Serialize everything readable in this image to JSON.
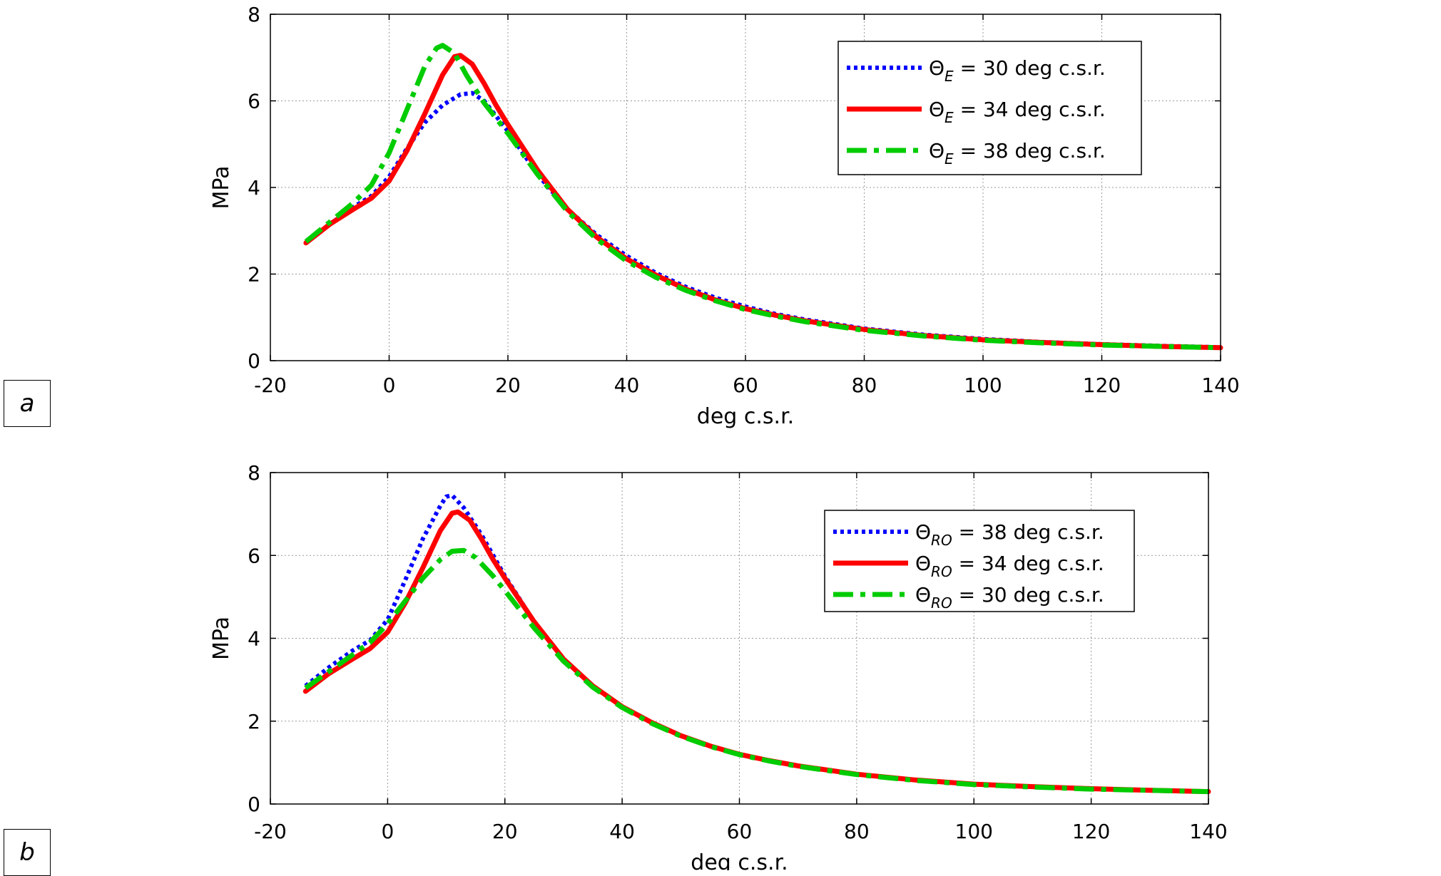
{
  "chart_data": [
    {
      "panel": "a",
      "type": "line",
      "xlabel": "deg c.s.r.",
      "ylabel": "MPa",
      "xlim": [
        -20,
        140
      ],
      "ylim": [
        0,
        8
      ],
      "xticks": [
        -20,
        0,
        20,
        40,
        60,
        80,
        100,
        120,
        140
      ],
      "yticks": [
        0,
        2,
        4,
        6,
        8
      ],
      "grid": true,
      "legend_position": "top-right",
      "series": [
        {
          "name": "Θ_E = 30 deg c.s.r.",
          "symbol": "Θ",
          "subscript": "E",
          "suffix": " = 30 deg c.s.r.",
          "color": "#0000ff",
          "style": "dotted",
          "points": [
            [
              -14,
              2.72
            ],
            [
              -10,
              3.15
            ],
            [
              -6,
              3.55
            ],
            [
              -3,
              3.8
            ],
            [
              0,
              4.25
            ],
            [
              3,
              4.9
            ],
            [
              6,
              5.5
            ],
            [
              9,
              5.9
            ],
            [
              12,
              6.15
            ],
            [
              14,
              6.18
            ],
            [
              16,
              6.0
            ],
            [
              18,
              5.65
            ],
            [
              20,
              5.3
            ],
            [
              25,
              4.3
            ],
            [
              30,
              3.5
            ],
            [
              35,
              2.9
            ],
            [
              40,
              2.42
            ],
            [
              45,
              2.02
            ],
            [
              50,
              1.7
            ],
            [
              55,
              1.45
            ],
            [
              60,
              1.25
            ],
            [
              65,
              1.08
            ],
            [
              70,
              0.95
            ],
            [
              80,
              0.74
            ],
            [
              90,
              0.6
            ],
            [
              100,
              0.5
            ],
            [
              110,
              0.43
            ],
            [
              120,
              0.38
            ],
            [
              130,
              0.34
            ],
            [
              140,
              0.31
            ]
          ]
        },
        {
          "name": "Θ_E = 34 deg c.s.r.",
          "symbol": "Θ",
          "subscript": "E",
          "suffix": " = 34 deg c.s.r.",
          "color": "#ff0000",
          "style": "solid",
          "points": [
            [
              -14,
              2.72
            ],
            [
              -10,
              3.15
            ],
            [
              -6,
              3.5
            ],
            [
              -3,
              3.75
            ],
            [
              0,
              4.15
            ],
            [
              3,
              4.85
            ],
            [
              6,
              5.7
            ],
            [
              9,
              6.6
            ],
            [
              11,
              7.02
            ],
            [
              12,
              7.05
            ],
            [
              14,
              6.85
            ],
            [
              16,
              6.4
            ],
            [
              18,
              5.9
            ],
            [
              20,
              5.45
            ],
            [
              25,
              4.4
            ],
            [
              30,
              3.5
            ],
            [
              35,
              2.85
            ],
            [
              40,
              2.35
            ],
            [
              45,
              1.97
            ],
            [
              50,
              1.65
            ],
            [
              55,
              1.4
            ],
            [
              60,
              1.2
            ],
            [
              65,
              1.05
            ],
            [
              70,
              0.92
            ],
            [
              80,
              0.72
            ],
            [
              90,
              0.58
            ],
            [
              100,
              0.48
            ],
            [
              110,
              0.42
            ],
            [
              120,
              0.37
            ],
            [
              130,
              0.33
            ],
            [
              140,
              0.3
            ]
          ]
        },
        {
          "name": "Θ_E = 38 deg c.s.r.",
          "symbol": "Θ",
          "subscript": "E",
          "suffix": " = 38 deg c.s.r.",
          "color": "#00cc00",
          "style": "dashdot",
          "points": [
            [
              -14,
              2.75
            ],
            [
              -10,
              3.2
            ],
            [
              -6,
              3.65
            ],
            [
              -3,
              4.05
            ],
            [
              0,
              4.8
            ],
            [
              3,
              5.8
            ],
            [
              6,
              6.8
            ],
            [
              8,
              7.22
            ],
            [
              9,
              7.28
            ],
            [
              11,
              7.1
            ],
            [
              13,
              6.6
            ],
            [
              16,
              5.95
            ],
            [
              20,
              5.25
            ],
            [
              25,
              4.3
            ],
            [
              30,
              3.45
            ],
            [
              35,
              2.8
            ],
            [
              40,
              2.3
            ],
            [
              45,
              1.92
            ],
            [
              50,
              1.62
            ],
            [
              55,
              1.38
            ],
            [
              60,
              1.18
            ],
            [
              65,
              1.03
            ],
            [
              70,
              0.9
            ],
            [
              80,
              0.7
            ],
            [
              90,
              0.57
            ],
            [
              100,
              0.47
            ],
            [
              110,
              0.41
            ],
            [
              120,
              0.36
            ],
            [
              130,
              0.33
            ],
            [
              140,
              0.3
            ]
          ]
        }
      ]
    },
    {
      "panel": "b",
      "type": "line",
      "xlabel": "deg c.s.r.",
      "ylabel": "MPa",
      "xlim": [
        -20,
        140
      ],
      "ylim": [
        0,
        8
      ],
      "xticks": [
        -20,
        0,
        20,
        40,
        60,
        80,
        100,
        120,
        140
      ],
      "yticks": [
        0,
        2,
        4,
        6,
        8
      ],
      "grid": true,
      "legend_position": "right",
      "series": [
        {
          "name": "Θ_RO = 38 deg c.s.r.",
          "symbol": "Θ",
          "subscript": "RO",
          "suffix": " = 38 deg c.s.r.",
          "color": "#0000ff",
          "style": "dotted",
          "points": [
            [
              -14,
              2.85
            ],
            [
              -10,
              3.3
            ],
            [
              -6,
              3.7
            ],
            [
              -3,
              3.95
            ],
            [
              0,
              4.45
            ],
            [
              3,
              5.4
            ],
            [
              6,
              6.4
            ],
            [
              9,
              7.2
            ],
            [
              10,
              7.42
            ],
            [
              11,
              7.45
            ],
            [
              13,
              7.15
            ],
            [
              16,
              6.5
            ],
            [
              20,
              5.5
            ],
            [
              25,
              4.4
            ],
            [
              30,
              3.5
            ],
            [
              35,
              2.85
            ],
            [
              40,
              2.35
            ],
            [
              45,
              1.97
            ],
            [
              50,
              1.65
            ],
            [
              55,
              1.4
            ],
            [
              60,
              1.2
            ],
            [
              65,
              1.05
            ],
            [
              70,
              0.92
            ],
            [
              80,
              0.72
            ],
            [
              90,
              0.58
            ],
            [
              100,
              0.48
            ],
            [
              110,
              0.42
            ],
            [
              120,
              0.37
            ],
            [
              130,
              0.33
            ],
            [
              140,
              0.3
            ]
          ]
        },
        {
          "name": "Θ_RO = 34 deg c.s.r.",
          "symbol": "Θ",
          "subscript": "RO",
          "suffix": " = 34 deg c.s.r.",
          "color": "#ff0000",
          "style": "solid",
          "points": [
            [
              -14,
              2.72
            ],
            [
              -10,
              3.15
            ],
            [
              -6,
              3.5
            ],
            [
              -3,
              3.75
            ],
            [
              0,
              4.15
            ],
            [
              3,
              4.85
            ],
            [
              6,
              5.7
            ],
            [
              9,
              6.6
            ],
            [
              11,
              7.02
            ],
            [
              12,
              7.05
            ],
            [
              14,
              6.85
            ],
            [
              16,
              6.4
            ],
            [
              18,
              5.9
            ],
            [
              20,
              5.45
            ],
            [
              25,
              4.4
            ],
            [
              30,
              3.5
            ],
            [
              35,
              2.85
            ],
            [
              40,
              2.35
            ],
            [
              45,
              1.97
            ],
            [
              50,
              1.65
            ],
            [
              55,
              1.4
            ],
            [
              60,
              1.2
            ],
            [
              65,
              1.05
            ],
            [
              70,
              0.92
            ],
            [
              80,
              0.72
            ],
            [
              90,
              0.58
            ],
            [
              100,
              0.48
            ],
            [
              110,
              0.42
            ],
            [
              120,
              0.37
            ],
            [
              130,
              0.33
            ],
            [
              140,
              0.3
            ]
          ]
        },
        {
          "name": "Θ_RO = 30 deg c.s.r.",
          "symbol": "Θ",
          "subscript": "RO",
          "suffix": " = 30 deg c.s.r.",
          "color": "#00cc00",
          "style": "dashdot",
          "points": [
            [
              -14,
              2.8
            ],
            [
              -10,
              3.2
            ],
            [
              -6,
              3.6
            ],
            [
              -3,
              3.9
            ],
            [
              0,
              4.35
            ],
            [
              3,
              4.9
            ],
            [
              6,
              5.45
            ],
            [
              9,
              5.9
            ],
            [
              11,
              6.1
            ],
            [
              13,
              6.12
            ],
            [
              15,
              5.95
            ],
            [
              18,
              5.5
            ],
            [
              20,
              5.15
            ],
            [
              25,
              4.25
            ],
            [
              30,
              3.45
            ],
            [
              35,
              2.82
            ],
            [
              40,
              2.33
            ],
            [
              45,
              1.95
            ],
            [
              50,
              1.64
            ],
            [
              55,
              1.39
            ],
            [
              60,
              1.19
            ],
            [
              65,
              1.04
            ],
            [
              70,
              0.91
            ],
            [
              80,
              0.71
            ],
            [
              90,
              0.57
            ],
            [
              100,
              0.47
            ],
            [
              110,
              0.41
            ],
            [
              120,
              0.36
            ],
            [
              130,
              0.33
            ],
            [
              140,
              0.3
            ]
          ]
        }
      ]
    }
  ]
}
